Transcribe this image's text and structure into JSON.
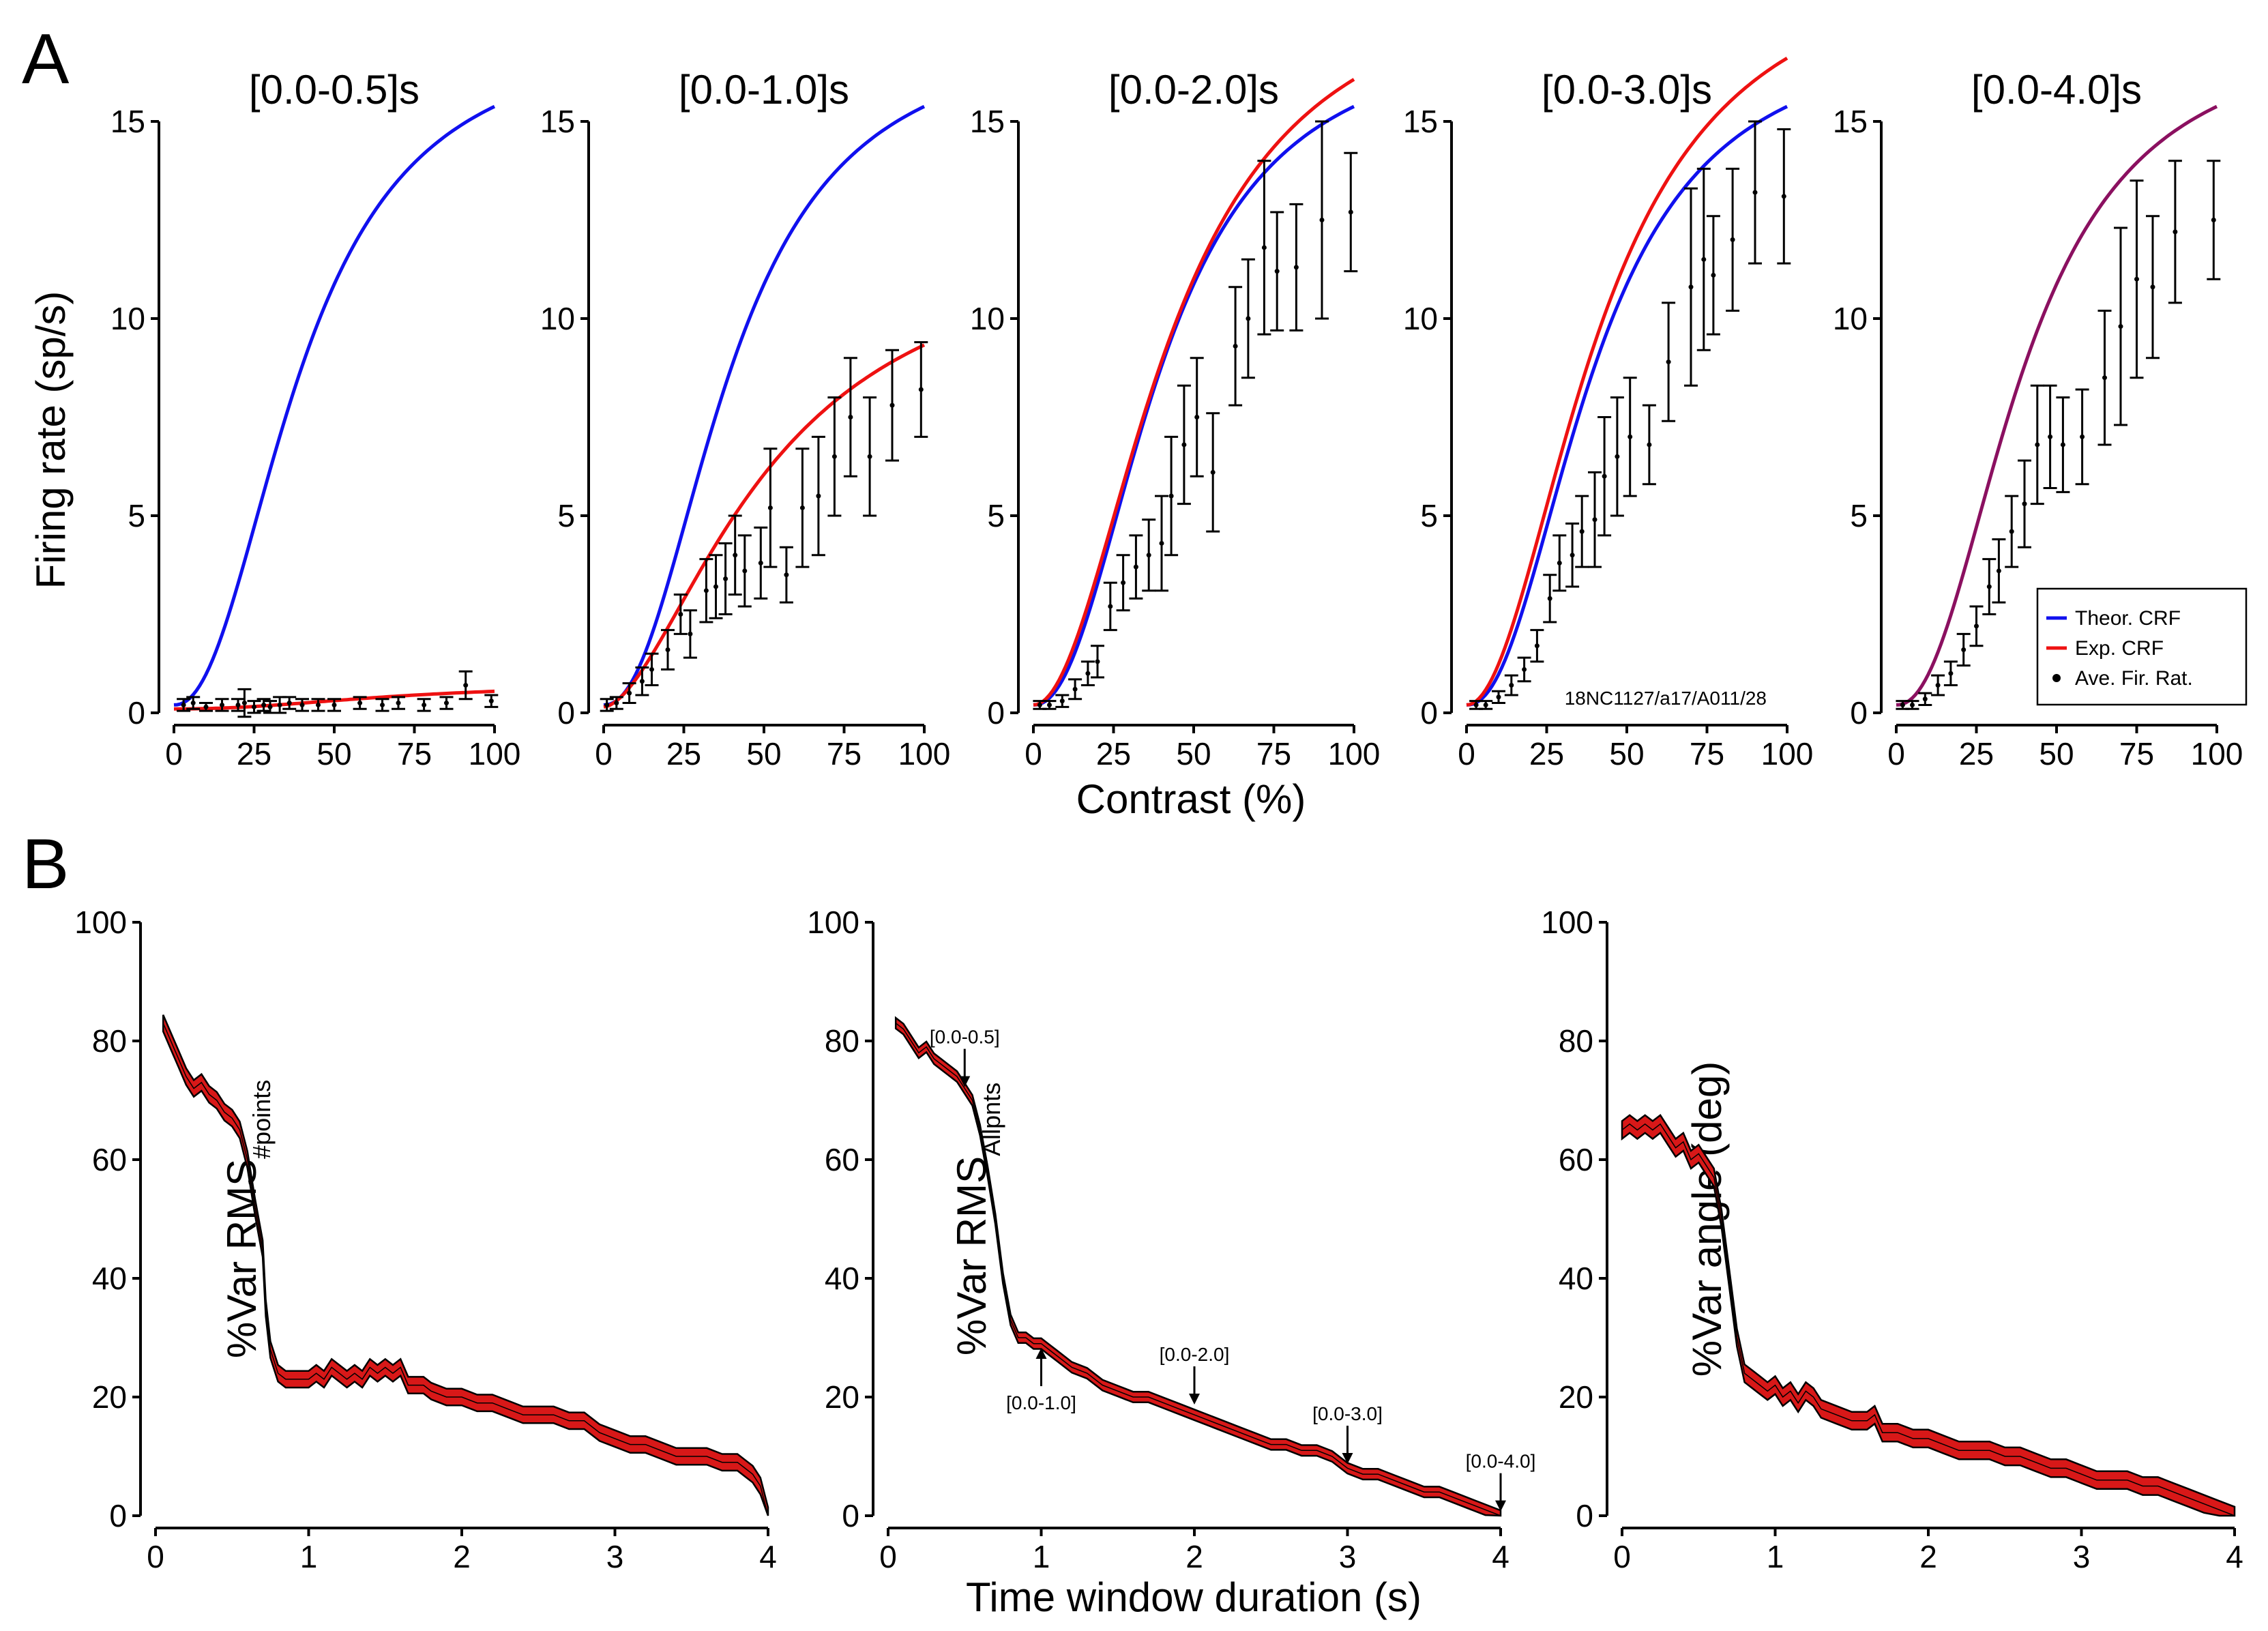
{
  "figure": {
    "panel_a_letter": "A",
    "panel_b_letter": "B",
    "a_ylabel": "Firing rate (sp/s)",
    "a_xlabel": "Contrast (%)",
    "b_xlabel": "Time window duration (s)",
    "b_ylabels": [
      {
        "main": "%Var RMS",
        "sub": "#points"
      },
      {
        "main": "%Var RMS",
        "sub": "Allpnts"
      },
      {
        "main": "%Var angle (deg)",
        "sub": ""
      }
    ],
    "legend": {
      "theor": "Theor. CRF",
      "exp": "Exp. CRF",
      "ave": "Ave. Fir. Rat."
    },
    "cell_id": "18NC1127/a17/A011/28"
  },
  "colors": {
    "theor": "#1010ee",
    "exp": "#ee1111",
    "merged": "#8b1060",
    "err": "#000000",
    "band": "#d81818"
  },
  "chart_data": [
    {
      "type": "line",
      "title": "[0.0-0.5]s",
      "xlabel": "Contrast (%)",
      "ylabel": "Firing rate (sp/s)",
      "xlim": [
        0,
        100
      ],
      "ylim": [
        0,
        15
      ],
      "xticks": [
        0,
        25,
        50,
        75,
        100
      ],
      "yticks": [
        0,
        5,
        10,
        15
      ],
      "theor_crf": {
        "c50": 40,
        "n": 2.2,
        "rmax": 17.2,
        "base": 0.2
      },
      "exp_crf": {
        "c50": 70,
        "n": 2.2,
        "rmax": 0.65,
        "base": 0.1
      },
      "points": [
        [
          3,
          0.2,
          0.15
        ],
        [
          6,
          0.25,
          0.15
        ],
        [
          10,
          0.15,
          0.1
        ],
        [
          15,
          0.2,
          0.15
        ],
        [
          20,
          0.2,
          0.15
        ],
        [
          22,
          0.25,
          0.35
        ],
        [
          25,
          0.15,
          0.15
        ],
        [
          28,
          0.2,
          0.15
        ],
        [
          30,
          0.15,
          0.15
        ],
        [
          33,
          0.2,
          0.2
        ],
        [
          36,
          0.25,
          0.15
        ],
        [
          40,
          0.2,
          0.15
        ],
        [
          45,
          0.2,
          0.15
        ],
        [
          50,
          0.2,
          0.15
        ],
        [
          58,
          0.25,
          0.15
        ],
        [
          65,
          0.2,
          0.15
        ],
        [
          70,
          0.25,
          0.15
        ],
        [
          78,
          0.2,
          0.15
        ],
        [
          85,
          0.25,
          0.15
        ],
        [
          91,
          0.7,
          0.35
        ],
        [
          99,
          0.3,
          0.15
        ]
      ]
    },
    {
      "type": "line",
      "title": "[0.0-1.0]s",
      "xlabel": "Contrast (%)",
      "ylabel": "Firing rate (sp/s)",
      "xlim": [
        0,
        100
      ],
      "ylim": [
        0,
        15
      ],
      "xticks": [
        0,
        25,
        50,
        75,
        100
      ],
      "yticks": [
        0,
        5,
        10,
        15
      ],
      "theor_crf": {
        "c50": 40,
        "n": 2.2,
        "rmax": 17.2,
        "base": 0.2
      },
      "exp_crf": {
        "c50": 52,
        "n": 1.7,
        "rmax": 12.2,
        "base": 0.15
      },
      "points": [
        [
          1,
          0.2,
          0.15
        ],
        [
          4,
          0.25,
          0.15
        ],
        [
          8,
          0.5,
          0.25
        ],
        [
          12,
          0.8,
          0.35
        ],
        [
          15,
          1.1,
          0.4
        ],
        [
          20,
          1.6,
          0.5
        ],
        [
          24,
          2.5,
          0.5
        ],
        [
          27,
          2.0,
          0.6
        ],
        [
          32,
          3.1,
          0.8
        ],
        [
          35,
          3.2,
          0.8
        ],
        [
          38,
          3.4,
          0.9
        ],
        [
          41,
          4.0,
          1.0
        ],
        [
          44,
          3.6,
          0.9
        ],
        [
          49,
          3.8,
          0.9
        ],
        [
          52,
          5.2,
          1.5
        ],
        [
          57,
          3.5,
          0.7
        ],
        [
          62,
          5.2,
          1.5
        ],
        [
          67,
          5.5,
          1.5
        ],
        [
          72,
          6.5,
          1.5
        ],
        [
          77,
          7.5,
          1.5
        ],
        [
          83,
          6.5,
          1.5
        ],
        [
          90,
          7.8,
          1.4
        ],
        [
          99,
          8.2,
          1.2
        ]
      ]
    },
    {
      "type": "line",
      "title": "[0.0-2.0]s",
      "xlabel": "Contrast (%)",
      "ylabel": "Firing rate (sp/s)",
      "xlim": [
        0,
        100
      ],
      "ylim": [
        0,
        15
      ],
      "xticks": [
        0,
        25,
        50,
        75,
        100
      ],
      "yticks": [
        0,
        5,
        10,
        15
      ],
      "theor_crf": {
        "c50": 40,
        "n": 2.2,
        "rmax": 17.2,
        "base": 0.2
      },
      "exp_crf": {
        "c50": 43,
        "n": 2.0,
        "rmax": 18.8,
        "base": 0.2
      },
      "points": [
        [
          2,
          0.2,
          0.1
        ],
        [
          5,
          0.2,
          0.1
        ],
        [
          9,
          0.3,
          0.15
        ],
        [
          13,
          0.6,
          0.25
        ],
        [
          17,
          1.0,
          0.3
        ],
        [
          20,
          1.3,
          0.4
        ],
        [
          24,
          2.7,
          0.6
        ],
        [
          28,
          3.3,
          0.7
        ],
        [
          32,
          3.7,
          0.8
        ],
        [
          36,
          4.0,
          0.9
        ],
        [
          40,
          4.3,
          1.2
        ],
        [
          43,
          5.5,
          1.5
        ],
        [
          47,
          6.8,
          1.5
        ],
        [
          51,
          7.5,
          1.5
        ],
        [
          56,
          6.1,
          1.5
        ],
        [
          63,
          9.3,
          1.5
        ],
        [
          67,
          10.0,
          1.5
        ],
        [
          72,
          11.8,
          2.2
        ],
        [
          76,
          11.2,
          1.5
        ],
        [
          82,
          11.3,
          1.6
        ],
        [
          90,
          12.5,
          2.5
        ],
        [
          99,
          12.7,
          1.5
        ]
      ]
    },
    {
      "type": "line",
      "title": "[0.0-3.0]s",
      "xlabel": "Contrast (%)",
      "ylabel": "Firing rate (sp/s)",
      "xlim": [
        0,
        100
      ],
      "ylim": [
        0,
        15
      ],
      "xticks": [
        0,
        25,
        50,
        75,
        100
      ],
      "yticks": [
        0,
        5,
        10,
        15
      ],
      "theor_crf": {
        "c50": 40,
        "n": 2.2,
        "rmax": 17.2,
        "base": 0.2
      },
      "exp_crf": {
        "c50": 42,
        "n": 2.0,
        "rmax": 19.3,
        "base": 0.2
      },
      "points": [
        [
          3,
          0.2,
          0.1
        ],
        [
          6,
          0.2,
          0.1
        ],
        [
          10,
          0.4,
          0.15
        ],
        [
          14,
          0.7,
          0.25
        ],
        [
          18,
          1.1,
          0.3
        ],
        [
          22,
          1.7,
          0.4
        ],
        [
          26,
          2.9,
          0.6
        ],
        [
          29,
          3.8,
          0.7
        ],
        [
          33,
          4.0,
          0.8
        ],
        [
          36,
          4.6,
          0.9
        ],
        [
          40,
          4.9,
          1.2
        ],
        [
          43,
          6.0,
          1.5
        ],
        [
          47,
          6.5,
          1.5
        ],
        [
          51,
          7.0,
          1.5
        ],
        [
          57,
          6.8,
          1.0
        ],
        [
          63,
          8.9,
          1.5
        ],
        [
          70,
          10.8,
          2.5
        ],
        [
          74,
          11.5,
          2.3
        ],
        [
          77,
          11.1,
          1.5
        ],
        [
          83,
          12.0,
          1.8
        ],
        [
          90,
          13.2,
          1.8
        ],
        [
          99,
          13.1,
          1.7
        ]
      ]
    },
    {
      "type": "line",
      "title": "[0.0-4.0]s",
      "xlabel": "Contrast (%)",
      "ylabel": "Firing rate (sp/s)",
      "xlim": [
        0,
        100
      ],
      "ylim": [
        0,
        15
      ],
      "xticks": [
        0,
        25,
        50,
        75,
        100
      ],
      "yticks": [
        0,
        5,
        10,
        15
      ],
      "theor_crf": {
        "c50": 40,
        "n": 2.2,
        "rmax": 17.2,
        "base": 0.2
      },
      "exp_crf": {
        "c50": 40,
        "n": 2.2,
        "rmax": 17.2,
        "base": 0.2
      },
      "points": [
        [
          2,
          0.2,
          0.1
        ],
        [
          5,
          0.2,
          0.1
        ],
        [
          9,
          0.35,
          0.15
        ],
        [
          13,
          0.7,
          0.25
        ],
        [
          17,
          1.0,
          0.3
        ],
        [
          21,
          1.6,
          0.4
        ],
        [
          25,
          2.2,
          0.5
        ],
        [
          29,
          3.2,
          0.7
        ],
        [
          32,
          3.6,
          0.8
        ],
        [
          36,
          4.6,
          0.9
        ],
        [
          40,
          5.3,
          1.1
        ],
        [
          44,
          6.8,
          1.5
        ],
        [
          48,
          7.0,
          1.3
        ],
        [
          52,
          6.8,
          1.2
        ],
        [
          58,
          7.0,
          1.2
        ],
        [
          65,
          8.5,
          1.7
        ],
        [
          70,
          9.8,
          2.5
        ],
        [
          75,
          11.0,
          2.5
        ],
        [
          80,
          10.8,
          1.8
        ],
        [
          87,
          12.2,
          1.8
        ],
        [
          99,
          12.5,
          1.5
        ]
      ]
    },
    {
      "type": "area",
      "xlabel": "",
      "ylabel": "%Var RMS#points",
      "xlim": [
        0,
        4
      ],
      "ylim": [
        0,
        100
      ],
      "xticks": [
        0,
        1,
        2,
        3,
        4
      ],
      "yticks": [
        0,
        20,
        40,
        60,
        80,
        100
      ],
      "x": [
        0.05,
        0.1,
        0.15,
        0.2,
        0.25,
        0.3,
        0.35,
        0.4,
        0.45,
        0.5,
        0.55,
        0.6,
        0.65,
        0.7,
        0.72,
        0.75,
        0.8,
        0.85,
        0.9,
        1.0,
        1.05,
        1.1,
        1.15,
        1.2,
        1.25,
        1.3,
        1.35,
        1.4,
        1.45,
        1.5,
        1.55,
        1.6,
        1.65,
        1.7,
        1.75,
        1.8,
        1.9,
        2.0,
        2.1,
        2.2,
        2.3,
        2.4,
        2.5,
        2.6,
        2.7,
        2.8,
        2.9,
        3.0,
        3.1,
        3.2,
        3.3,
        3.4,
        3.5,
        3.6,
        3.7,
        3.8,
        3.85,
        3.9,
        3.95,
        4.0
      ],
      "y": [
        83,
        80,
        77,
        74,
        72,
        73,
        71,
        70,
        68,
        67,
        65,
        60,
        52,
        45,
        35,
        28,
        24,
        23,
        23,
        23,
        24,
        23,
        25,
        24,
        23,
        24,
        23,
        25,
        24,
        25,
        24,
        25,
        22,
        22,
        22,
        21,
        20,
        20,
        19,
        19,
        18,
        17,
        17,
        17,
        16,
        16,
        14,
        13,
        12,
        12,
        11,
        10,
        10,
        10,
        9,
        9,
        8,
        7,
        5,
        0
      ],
      "band": 1.4
    },
    {
      "type": "area",
      "xlabel": "Time window duration (s)",
      "ylabel": "%Var RMSAllpnts",
      "xlim": [
        0,
        4
      ],
      "ylim": [
        0,
        100
      ],
      "xticks": [
        0,
        1,
        2,
        3,
        4
      ],
      "yticks": [
        0,
        20,
        40,
        60,
        80,
        100
      ],
      "x": [
        0.05,
        0.1,
        0.15,
        0.2,
        0.25,
        0.3,
        0.35,
        0.4,
        0.45,
        0.5,
        0.55,
        0.6,
        0.65,
        0.7,
        0.75,
        0.8,
        0.85,
        0.9,
        0.95,
        1.0,
        1.05,
        1.1,
        1.2,
        1.3,
        1.4,
        1.5,
        1.6,
        1.7,
        1.8,
        1.9,
        2.0,
        2.1,
        2.2,
        2.3,
        2.4,
        2.5,
        2.6,
        2.7,
        2.8,
        2.9,
        3.0,
        3.1,
        3.2,
        3.3,
        3.4,
        3.5,
        3.6,
        3.7,
        3.8,
        3.9,
        4.0
      ],
      "y": [
        83,
        82,
        80,
        78,
        79,
        77,
        76,
        75,
        74,
        72,
        70,
        65,
        58,
        50,
        40,
        33,
        30,
        30,
        29,
        29,
        28,
        27,
        25,
        24,
        22,
        21,
        20,
        20,
        19,
        18,
        17,
        16,
        15,
        14,
        13,
        12,
        12,
        11,
        11,
        10,
        8,
        7,
        7,
        6,
        5,
        4,
        4,
        3,
        2,
        1,
        0
      ],
      "band": 0.9,
      "annotations": [
        {
          "text": "[0.0-0.5]",
          "x": 0.5,
          "y": 72,
          "dir": "down"
        },
        {
          "text": "[0.0-1.0]",
          "x": 1.0,
          "y": 28.5,
          "dir": "up"
        },
        {
          "text": "[0.0-2.0]",
          "x": 2.0,
          "y": 18.5,
          "dir": "down"
        },
        {
          "text": "[0.0-3.0]",
          "x": 3.0,
          "y": 8.5,
          "dir": "down"
        },
        {
          "text": "[0.0-4.0]",
          "x": 4.0,
          "y": 0.5,
          "dir": "down"
        }
      ]
    },
    {
      "type": "area",
      "xlabel": "",
      "ylabel": "%Var angle (deg)",
      "xlim": [
        0,
        4
      ],
      "ylim": [
        0,
        100
      ],
      "xticks": [
        0,
        1,
        2,
        3,
        4
      ],
      "yticks": [
        0,
        20,
        40,
        60,
        80,
        100
      ],
      "x": [
        0.0,
        0.05,
        0.1,
        0.15,
        0.2,
        0.25,
        0.3,
        0.35,
        0.4,
        0.45,
        0.5,
        0.55,
        0.6,
        0.65,
        0.7,
        0.75,
        0.8,
        0.85,
        0.9,
        0.95,
        1.0,
        1.05,
        1.1,
        1.15,
        1.2,
        1.25,
        1.3,
        1.4,
        1.5,
        1.6,
        1.65,
        1.7,
        1.8,
        1.9,
        2.0,
        2.1,
        2.2,
        2.3,
        2.4,
        2.5,
        2.6,
        2.7,
        2.8,
        2.9,
        3.0,
        3.1,
        3.2,
        3.3,
        3.4,
        3.5,
        3.6,
        3.7,
        3.8,
        3.9,
        4.0
      ],
      "y": [
        65,
        66,
        65,
        66,
        65,
        66,
        64,
        62,
        63,
        60,
        61,
        59,
        57,
        50,
        40,
        30,
        24,
        23,
        22,
        21,
        22,
        20,
        21,
        19,
        21,
        20,
        18,
        17,
        16,
        16,
        17,
        14,
        14,
        13,
        13,
        12,
        11,
        11,
        11,
        10,
        10,
        9,
        8,
        8,
        7,
        6,
        6,
        6,
        5,
        5,
        4,
        3,
        2,
        1,
        0
      ],
      "band": 1.5
    }
  ]
}
